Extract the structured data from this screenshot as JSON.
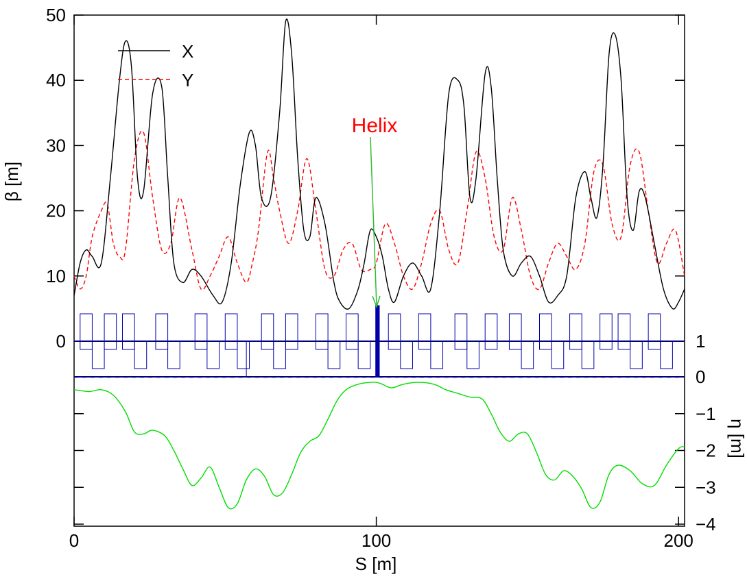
{
  "chart_data": {
    "type": "line",
    "xlabel": "S [m]",
    "ylabel_left": "β [m]",
    "ylabel_right": "η [m]",
    "x_range": [
      0,
      202
    ],
    "left_axis": {
      "range": [
        -6,
        50
      ],
      "ticks": [
        0,
        10,
        20,
        30,
        40,
        50
      ],
      "tick_labels": [
        "0",
        "10",
        "20",
        "30",
        "40",
        "50"
      ]
    },
    "right_axis": {
      "range": [
        -4,
        1
      ],
      "ticks": [
        1,
        0,
        -1,
        -2,
        -3,
        -4
      ],
      "tick_labels": [
        "1",
        "0",
        "−1",
        "−2",
        "−3",
        "−4"
      ]
    },
    "x_ticks": [
      0,
      100,
      200
    ],
    "x_tick_labels": [
      "0",
      "100",
      "200"
    ],
    "grid": false,
    "legend_position": "top-left",
    "series": [
      {
        "name": "X",
        "color": "#000000",
        "dash": "solid",
        "x": [
          0,
          2,
          4,
          6,
          9,
          12,
          15,
          17,
          19,
          21,
          23,
          26,
          29,
          31,
          33,
          36,
          39,
          42,
          46,
          49,
          52,
          55,
          58,
          60,
          62,
          65,
          68,
          70,
          72,
          74,
          76,
          78,
          80,
          83,
          86,
          88,
          91,
          94,
          96,
          98,
          100,
          102,
          104,
          106,
          109,
          112,
          115,
          118,
          121,
          124,
          127,
          129,
          131,
          133,
          136,
          138,
          140,
          142,
          145,
          148,
          151,
          154,
          157,
          160,
          163,
          166,
          169,
          171,
          173,
          175,
          177,
          179,
          181,
          183,
          185,
          187,
          189,
          192,
          195,
          198,
          200,
          202
        ],
        "y": [
          7,
          12,
          14,
          13,
          12,
          25,
          40,
          46,
          42,
          25,
          23,
          38,
          39,
          25,
          12,
          9,
          11,
          10,
          7,
          6,
          12,
          24,
          32,
          30,
          22,
          22,
          35,
          49,
          44,
          28,
          17,
          16,
          22,
          18,
          9,
          6,
          5,
          8,
          12,
          17,
          16,
          13,
          8,
          6,
          10,
          12,
          10,
          8,
          20,
          38,
          40,
          36,
          22,
          25,
          41,
          39,
          25,
          14,
          10,
          12,
          13,
          10,
          6,
          7,
          10,
          22,
          26,
          22,
          19,
          27,
          44,
          47,
          40,
          22,
          17,
          23,
          22,
          15,
          8,
          5,
          6,
          8
        ]
      },
      {
        "name": "Y",
        "color": "#ff0000",
        "dash": "dashed",
        "x": [
          0,
          2,
          4,
          6,
          9,
          11,
          13,
          15,
          17,
          20,
          23,
          26,
          29,
          32,
          35,
          39,
          42,
          45,
          48,
          51,
          54,
          57,
          59,
          61,
          64,
          66,
          68,
          71,
          74,
          77,
          80,
          83,
          86,
          89,
          92,
          95,
          98,
          100,
          103,
          106,
          109,
          112,
          115,
          118,
          121,
          124,
          127,
          130,
          133,
          136,
          139,
          142,
          145,
          148,
          151,
          154,
          157,
          160,
          163,
          166,
          169,
          172,
          175,
          178,
          181,
          184,
          187,
          190,
          193,
          196,
          199,
          202
        ],
        "y": [
          10,
          8,
          10,
          16,
          20,
          21,
          15,
          13,
          14,
          28,
          32,
          22,
          14,
          15,
          22,
          14,
          8,
          10,
          13,
          16,
          12,
          9,
          12,
          17,
          29,
          25,
          20,
          15,
          20,
          28,
          20,
          11,
          10,
          14,
          15,
          11,
          11,
          12,
          18,
          15,
          10,
          8,
          12,
          18,
          20,
          14,
          12,
          20,
          29,
          25,
          16,
          14,
          22,
          17,
          10,
          8,
          12,
          15,
          13,
          11,
          15,
          26,
          27,
          18,
          16,
          27,
          29,
          20,
          12,
          15,
          17,
          10
        ]
      },
      {
        "name": "",
        "color": "#00dd00",
        "dash": "solid",
        "axis": "right",
        "x": [
          0,
          5,
          9,
          13,
          17,
          20,
          23,
          26,
          30,
          33,
          36,
          39,
          42,
          45,
          48,
          51,
          54,
          57,
          60,
          63,
          66,
          69,
          72,
          75,
          78,
          81,
          84,
          87,
          90,
          94,
          98,
          100,
          102,
          105,
          109,
          114,
          119,
          123,
          127,
          131,
          135,
          138,
          141,
          144,
          147,
          150,
          153,
          156,
          159,
          162,
          165,
          168,
          171,
          174,
          177,
          180,
          184,
          188,
          192,
          196,
          200,
          202
        ],
        "y": [
          -0.35,
          -0.4,
          -0.35,
          -0.5,
          -0.95,
          -1.5,
          -1.55,
          -1.45,
          -1.6,
          -2.0,
          -2.5,
          -2.95,
          -2.75,
          -2.45,
          -3.0,
          -3.55,
          -3.45,
          -2.8,
          -2.5,
          -2.7,
          -3.2,
          -3.15,
          -2.65,
          -2.05,
          -1.75,
          -1.6,
          -1.15,
          -0.65,
          -0.35,
          -0.2,
          -0.15,
          -0.15,
          -0.2,
          -0.3,
          -0.2,
          -0.15,
          -0.2,
          -0.35,
          -0.45,
          -0.55,
          -0.6,
          -1.0,
          -1.5,
          -1.75,
          -1.55,
          -1.55,
          -2.05,
          -2.65,
          -2.8,
          -2.55,
          -2.7,
          -3.05,
          -3.55,
          -3.4,
          -2.65,
          -2.4,
          -2.55,
          -2.9,
          -2.95,
          -2.4,
          -1.95,
          -1.9
        ]
      }
    ],
    "annotation": {
      "text": "Helix",
      "color": "#ff0000",
      "arrow_color": "#33bb33",
      "points_to_x": 100
    }
  }
}
